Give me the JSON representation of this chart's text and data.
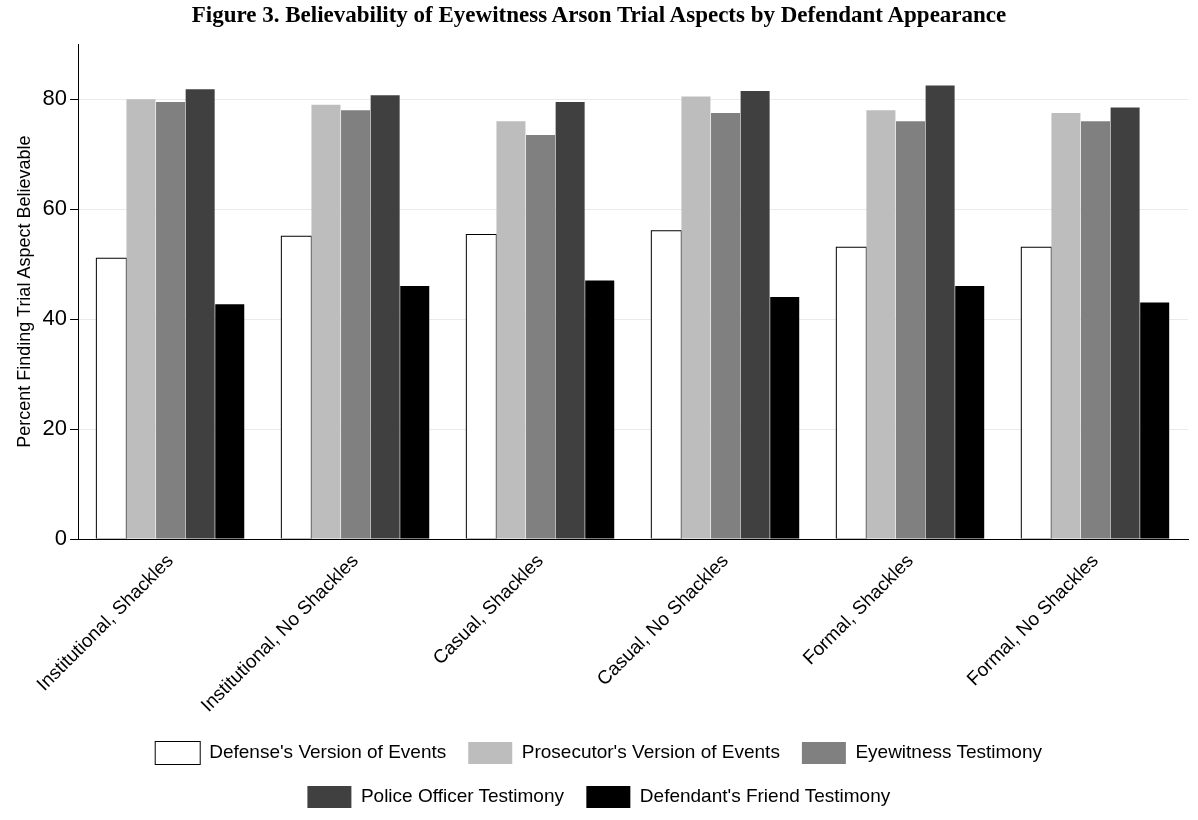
{
  "chart_data": {
    "type": "bar",
    "title": "Figure 3. Believability of Eyewitness Arson Trial Aspects by Defendant Appearance",
    "ylabel": "Percent Finding Trial Aspect Believable",
    "categories": [
      "Institutional, Shackles",
      "Institutional, No Shackles",
      "Casual, Shackles",
      "Casual, No Shackles",
      "Formal, Shackles",
      "Formal, No Shackles"
    ],
    "series": [
      {
        "name": "Defense's Version of Events",
        "color": "#ffffff",
        "values": [
          51,
          55,
          55.3,
          56,
          53,
          53
        ]
      },
      {
        "name": "Prosecutor's Version of Events",
        "color": "#bdbdbd",
        "values": [
          80,
          79,
          76,
          80.5,
          78,
          77.5
        ]
      },
      {
        "name": "Eyewitness Testimony",
        "color": "#808080",
        "values": [
          79.5,
          78,
          73.5,
          77.5,
          76,
          76
        ]
      },
      {
        "name": "Police Officer Testimony",
        "color": "#404040",
        "values": [
          81.8,
          80.7,
          79.5,
          81.5,
          82.5,
          78.5
        ]
      },
      {
        "name": "Defendant's Friend Testimony",
        "color": "#000000",
        "values": [
          42.7,
          46,
          47,
          44,
          46,
          43
        ]
      }
    ],
    "ylim": [
      0,
      90
    ],
    "yticks": [
      0,
      20,
      40,
      60,
      80
    ],
    "grid": "y",
    "legend": "bottom"
  }
}
